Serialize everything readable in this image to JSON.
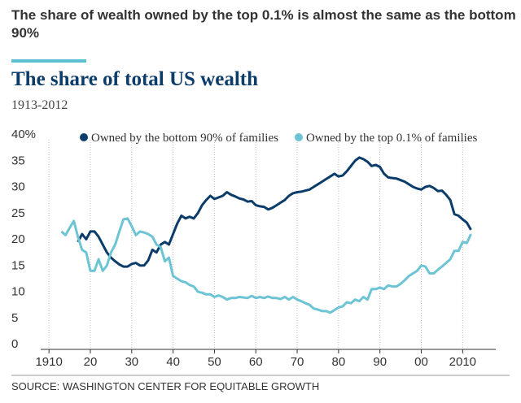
{
  "chart_data": {
    "type": "line",
    "title": "The share of wealth owned by the top 0.1% is almost the same as the bottom 90%",
    "subtitle": "The share of total US wealth",
    "date_range": "1913-2012",
    "source": "SOURCE: WASHINGTON CENTER FOR EQUITABLE GROWTH",
    "x": [
      1913,
      1914,
      1915,
      1916,
      1917,
      1918,
      1919,
      1920,
      1921,
      1922,
      1923,
      1924,
      1925,
      1926,
      1927,
      1928,
      1929,
      1930,
      1931,
      1932,
      1933,
      1934,
      1935,
      1936,
      1937,
      1938,
      1939,
      1940,
      1941,
      1942,
      1943,
      1944,
      1945,
      1946,
      1947,
      1948,
      1949,
      1950,
      1951,
      1952,
      1953,
      1954,
      1955,
      1956,
      1957,
      1958,
      1959,
      1960,
      1961,
      1962,
      1963,
      1964,
      1965,
      1966,
      1967,
      1968,
      1969,
      1970,
      1971,
      1972,
      1973,
      1974,
      1975,
      1976,
      1977,
      1978,
      1979,
      1980,
      1981,
      1982,
      1983,
      1984,
      1985,
      1986,
      1987,
      1988,
      1989,
      1990,
      1991,
      1992,
      1993,
      1994,
      1995,
      1996,
      1997,
      1998,
      1999,
      2000,
      2001,
      2002,
      2003,
      2004,
      2005,
      2006,
      2007,
      2008,
      2009,
      2010,
      2011,
      2012
    ],
    "series": [
      {
        "name": "Owned by the bottom 90% of families",
        "color": "#0b3c6a",
        "values": [
          null,
          null,
          null,
          null,
          20.5,
          22,
          21,
          22.5,
          22.5,
          21.5,
          20,
          18.5,
          17.5,
          16.8,
          16.2,
          15.8,
          15.8,
          16.3,
          16.5,
          16,
          16,
          17,
          19,
          18.5,
          20,
          20.5,
          20,
          22,
          24,
          25.5,
          25,
          25.3,
          25,
          26,
          27.5,
          28.5,
          29.3,
          28.7,
          29,
          29.3,
          30,
          29.5,
          29.2,
          28.8,
          28.6,
          28.2,
          28.3,
          27.5,
          27.3,
          27.2,
          26.7,
          27,
          27.5,
          28,
          28.5,
          29.3,
          29.8,
          30,
          30.1,
          30.3,
          30.5,
          31,
          31.5,
          32,
          32.5,
          33,
          33.5,
          33,
          33.2,
          34,
          35,
          36,
          36.6,
          36.3,
          35.8,
          35,
          35.2,
          34.8,
          33.5,
          32.8,
          32.7,
          32.6,
          32.3,
          32,
          31.5,
          31,
          30.7,
          30.5,
          31,
          31.2,
          30.8,
          30.2,
          30.3,
          29.5,
          28.5,
          25.8,
          25.5,
          24.8,
          24.2,
          22.8
        ]
      },
      {
        "name": "Owned by the top 0.1% of families",
        "color": "#6cc4d4",
        "values": [
          22.5,
          21.8,
          23.2,
          24.5,
          21.5,
          19,
          18.5,
          15,
          15,
          17.2,
          15,
          16,
          18.5,
          20,
          22.5,
          24.8,
          25,
          23.5,
          21.8,
          22.5,
          22.3,
          22,
          21.5,
          20,
          19.5,
          16.8,
          17.5,
          14,
          13.5,
          13,
          12.8,
          12.3,
          12,
          11,
          10.8,
          10.5,
          10.5,
          10,
          10.3,
          10,
          9.5,
          9.8,
          9.8,
          10,
          9.9,
          9.8,
          10.2,
          9.8,
          10,
          9.8,
          10.1,
          9.8,
          9.8,
          9.6,
          10,
          9.5,
          10,
          9.5,
          9.2,
          8.8,
          8.5,
          7.8,
          7.6,
          7.3,
          7.3,
          7,
          7.5,
          8,
          8.2,
          9,
          8.8,
          9.5,
          9.2,
          10,
          9.5,
          11.5,
          11.5,
          11.8,
          11.5,
          12.2,
          12,
          12,
          12.5,
          13.2,
          14,
          14.5,
          15,
          16,
          15.8,
          14.5,
          14.5,
          15.2,
          15.8,
          16.5,
          17.2,
          18.8,
          18.8,
          20.5,
          20.3,
          22
        ]
      }
    ],
    "xlim": [
      1908,
      2018
    ],
    "xticks": [
      {
        "value": 1910,
        "label": "1910"
      },
      {
        "value": 1920,
        "label": "20"
      },
      {
        "value": 1930,
        "label": "30"
      },
      {
        "value": 1940,
        "label": "40"
      },
      {
        "value": 1950,
        "label": "50"
      },
      {
        "value": 1960,
        "label": "60"
      },
      {
        "value": 1970,
        "label": "70"
      },
      {
        "value": 1980,
        "label": "80"
      },
      {
        "value": 1990,
        "label": "90"
      },
      {
        "value": 2000,
        "label": "00"
      },
      {
        "value": 2010,
        "label": "2010"
      }
    ],
    "ylim": [
      0,
      40
    ],
    "yticks": [
      0,
      5,
      10,
      15,
      20,
      25,
      30,
      35,
      {
        "value": 40,
        "label": "40%"
      }
    ],
    "grid": "x"
  }
}
